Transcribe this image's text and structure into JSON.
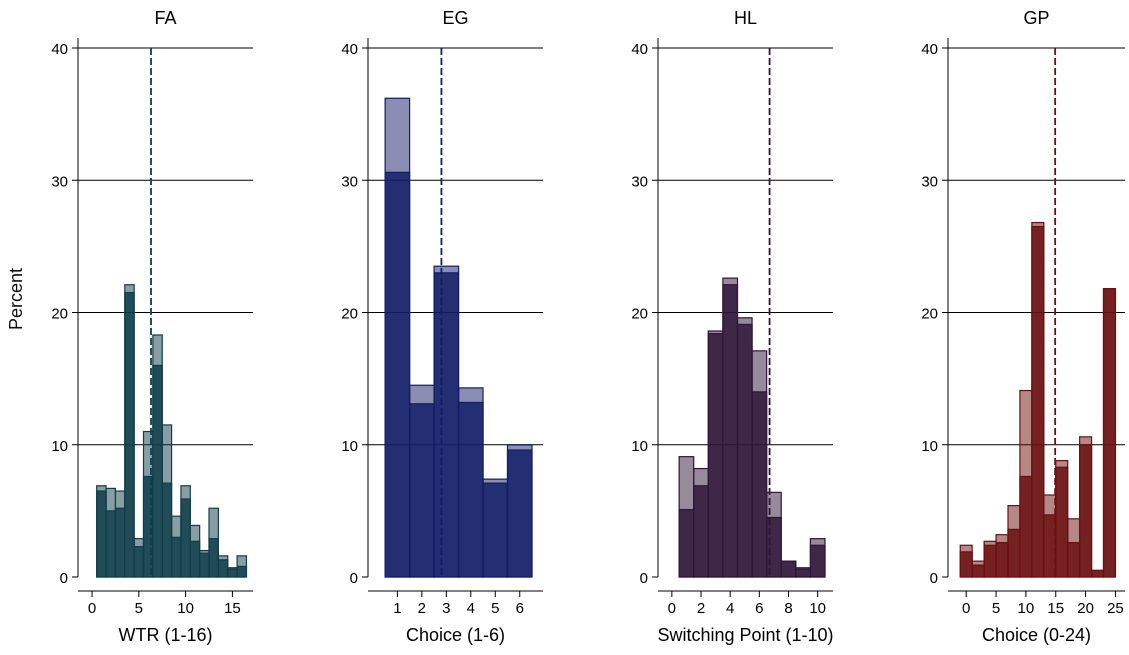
{
  "ylabel": "Percent",
  "colors": {
    "FA": "#0f3d4a",
    "EG": "#131d66",
    "HL": "#2f1638",
    "GP": "#6b0f0f"
  },
  "chart_data": [
    {
      "type": "bar",
      "title": "FA",
      "xlabel": "WTR (1-16)",
      "ylim": [
        0,
        40
      ],
      "yticks": [
        0,
        10,
        20,
        30,
        40
      ],
      "xlim": [
        -1.5,
        17.2
      ],
      "xticks": [
        0,
        5,
        10,
        15
      ],
      "bin_width": 1,
      "mean_line": 6.3,
      "grid": true,
      "series": [
        {
          "x": [
            1,
            2,
            3,
            4,
            5,
            6,
            7,
            8,
            9,
            10,
            11,
            12,
            13,
            14,
            15,
            16
          ],
          "values": [
            6.9,
            6.7,
            6.5,
            22.1,
            2.9,
            11.0,
            18.3,
            11.5,
            4.6,
            6.9,
            3.9,
            2.0,
            5.2,
            1.6,
            0.7,
            1.6
          ]
        },
        {
          "x": [
            1,
            2,
            3,
            4,
            5,
            6,
            7,
            8,
            9,
            10,
            11,
            12,
            13,
            14,
            15,
            16
          ],
          "values": [
            6.5,
            5.0,
            5.2,
            21.5,
            2.3,
            7.6,
            16.0,
            7.1,
            3.0,
            5.9,
            2.7,
            1.8,
            2.9,
            1.3,
            0.6,
            0.8
          ]
        }
      ]
    },
    {
      "type": "bar",
      "title": "EG",
      "xlabel": "Choice (1-6)",
      "ylim": [
        0,
        40
      ],
      "yticks": [
        0,
        10,
        20,
        30,
        40
      ],
      "xlim": [
        -0.2,
        6.95
      ],
      "xticks": [
        1,
        2,
        3,
        4,
        5,
        6
      ],
      "bin_width": 1,
      "mean_line": 2.8,
      "grid": true,
      "series": [
        {
          "x": [
            1,
            2,
            3,
            4,
            5,
            6
          ],
          "values": [
            36.2,
            14.5,
            23.5,
            14.3,
            7.4,
            10.0
          ]
        },
        {
          "x": [
            1,
            2,
            3,
            4,
            5,
            6
          ],
          "values": [
            30.6,
            13.1,
            23.0,
            13.2,
            7.1,
            9.6
          ]
        }
      ]
    },
    {
      "type": "bar",
      "title": "HL",
      "xlabel": "Switching Point (1-10)",
      "ylim": [
        0,
        40
      ],
      "yticks": [
        0,
        10,
        20,
        30,
        40
      ],
      "xlim": [
        -0.95,
        11.05
      ],
      "xticks": [
        0,
        2,
        4,
        6,
        8,
        10
      ],
      "bin_width": 1,
      "mean_line": 6.7,
      "grid": true,
      "series": [
        {
          "x": [
            1,
            2,
            3,
            4,
            5,
            6,
            7,
            8,
            9,
            10
          ],
          "values": [
            9.1,
            8.2,
            18.6,
            22.6,
            19.6,
            17.1,
            6.4,
            1.2,
            0.7,
            2.9
          ]
        },
        {
          "x": [
            1,
            2,
            3,
            4,
            5,
            6,
            7,
            8,
            9,
            10
          ],
          "values": [
            5.1,
            6.9,
            18.4,
            22.1,
            19.1,
            14.0,
            4.5,
            1.2,
            0.6,
            2.4
          ]
        }
      ]
    },
    {
      "type": "bar",
      "title": "GP",
      "xlabel": "Choice (0-24)",
      "ylim": [
        0,
        40
      ],
      "yticks": [
        0,
        10,
        20,
        30,
        40
      ],
      "xlim": [
        -3.05,
        26.6
      ],
      "xticks": [
        0,
        5,
        10,
        15,
        20,
        25
      ],
      "bin_width": 2,
      "mean_line": 14.9,
      "grid": true,
      "series": [
        {
          "x": [
            0,
            2,
            4,
            6,
            8,
            10,
            12,
            14,
            16,
            18,
            20,
            22,
            24
          ],
          "values": [
            2.4,
            1.2,
            2.7,
            3.2,
            5.4,
            14.1,
            26.8,
            6.2,
            8.8,
            4.4,
            10.6,
            0.5,
            21.8
          ]
        },
        {
          "x": [
            0,
            2,
            4,
            6,
            8,
            10,
            12,
            14,
            16,
            18,
            20,
            22,
            24
          ],
          "values": [
            1.9,
            0.9,
            2.4,
            2.6,
            3.6,
            7.6,
            26.5,
            4.7,
            8.3,
            2.6,
            10.0,
            0.5,
            21.8
          ]
        }
      ]
    }
  ]
}
